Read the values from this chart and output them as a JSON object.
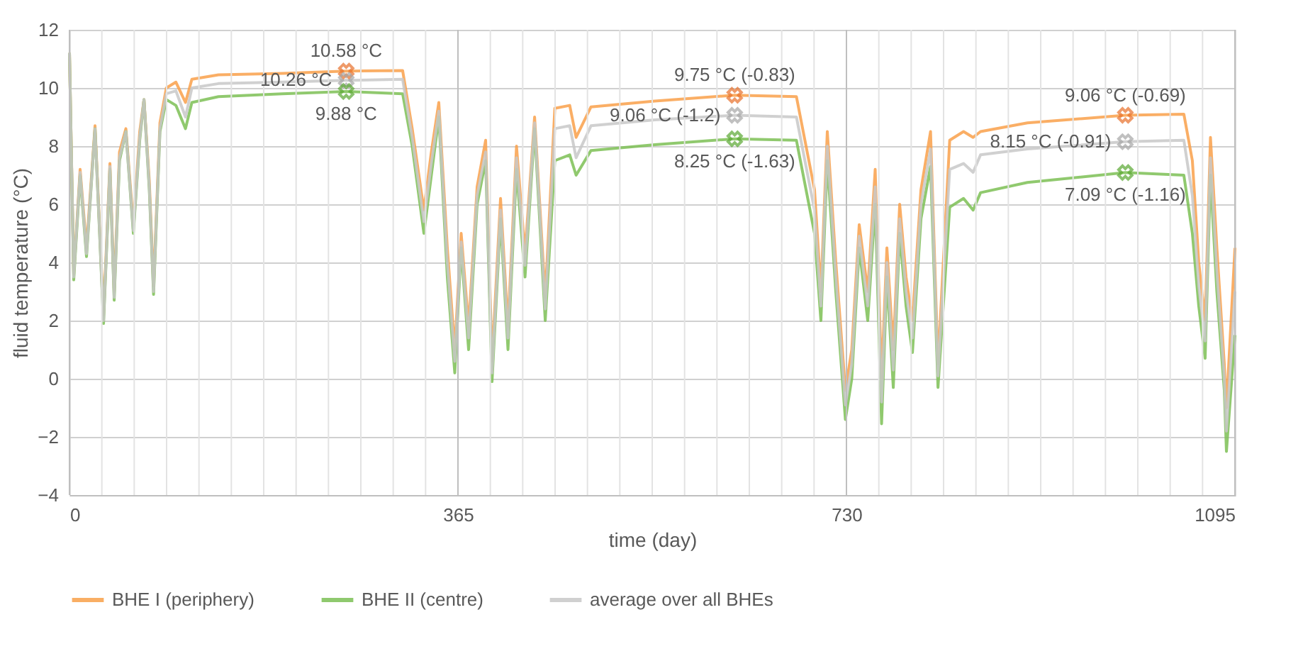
{
  "chart_data": {
    "type": "line",
    "xlabel": "time (day)",
    "ylabel": "fluid temperature (°C)",
    "x": [
      0,
      4,
      10,
      16,
      24,
      32,
      38,
      42,
      47,
      53,
      60,
      66,
      70,
      75,
      79,
      85,
      91,
      100,
      109,
      115,
      140,
      200,
      260,
      313,
      322,
      333,
      340,
      347,
      355,
      362,
      368,
      375,
      383,
      391,
      397,
      405,
      412,
      420,
      428,
      437,
      447,
      456,
      470,
      476,
      490,
      550,
      625,
      683,
      700,
      706,
      712,
      720,
      729,
      735,
      742,
      750,
      757,
      763,
      768,
      774,
      780,
      786,
      792,
      800,
      809,
      816,
      827,
      840,
      849,
      856,
      900,
      992,
      1047,
      1055,
      1061,
      1067,
      1072,
      1078,
      1085,
      1087,
      1095
    ],
    "series": [
      {
        "name": "BHE I (periphery)",
        "color": "#f9a04a",
        "values": [
          11.2,
          3.6,
          7.2,
          4.5,
          8.7,
          2.2,
          7.4,
          3.0,
          7.8,
          8.6,
          5.3,
          8.5,
          9.6,
          6.8,
          3.2,
          8.8,
          10.0,
          10.2,
          9.5,
          10.3,
          10.45,
          10.5,
          10.58,
          10.6,
          8.6,
          5.8,
          7.8,
          9.5,
          4.5,
          1.0,
          5.0,
          1.8,
          6.6,
          8.2,
          0.6,
          6.2,
          1.8,
          8.0,
          4.3,
          9.0,
          2.8,
          9.3,
          9.4,
          8.3,
          9.35,
          9.55,
          9.75,
          9.7,
          6.5,
          3.0,
          8.5,
          4.0,
          -0.4,
          1.0,
          5.3,
          3.0,
          7.2,
          0.0,
          4.5,
          1.0,
          6.0,
          3.5,
          2.0,
          6.5,
          8.5,
          0.5,
          8.2,
          8.5,
          8.3,
          8.5,
          8.8,
          9.06,
          9.1,
          7.5,
          4.0,
          2.0,
          8.3,
          4.5,
          0.5,
          -1.0,
          4.5
        ]
      },
      {
        "name": "BHE II (centre)",
        "color": "#7cc055",
        "values": [
          11.2,
          3.4,
          7.0,
          4.2,
          8.6,
          1.9,
          7.2,
          2.7,
          7.5,
          8.5,
          5.0,
          8.2,
          9.6,
          6.5,
          2.9,
          8.5,
          9.6,
          9.4,
          8.6,
          9.5,
          9.7,
          9.8,
          9.88,
          9.8,
          8.0,
          5.0,
          7.0,
          9.0,
          3.5,
          0.2,
          4.5,
          1.0,
          6.0,
          7.5,
          -0.1,
          5.5,
          1.0,
          7.2,
          3.5,
          8.6,
          2.0,
          7.5,
          7.7,
          7.0,
          7.85,
          8.05,
          8.25,
          8.2,
          5.0,
          2.0,
          7.5,
          3.0,
          -1.4,
          0.0,
          4.5,
          2.0,
          6.0,
          -1.55,
          3.5,
          -0.3,
          5.0,
          2.5,
          0.9,
          5.5,
          7.3,
          -0.3,
          5.9,
          6.2,
          5.8,
          6.4,
          6.75,
          7.09,
          7.0,
          5.0,
          2.5,
          0.7,
          7.0,
          3.0,
          -0.4,
          -2.5,
          1.5
        ]
      },
      {
        "name": "average over all BHEs",
        "color": "#c8c8c8",
        "values": [
          11.2,
          3.5,
          7.1,
          4.3,
          8.6,
          2.0,
          7.3,
          2.8,
          7.6,
          8.5,
          5.1,
          8.3,
          9.6,
          6.6,
          3.0,
          8.6,
          9.8,
          9.9,
          9.0,
          10.0,
          10.15,
          10.2,
          10.26,
          10.3,
          8.3,
          5.4,
          7.4,
          9.2,
          4.0,
          0.6,
          4.7,
          1.4,
          6.3,
          7.8,
          0.2,
          5.8,
          1.4,
          7.6,
          3.9,
          8.8,
          2.4,
          8.6,
          8.7,
          7.6,
          8.7,
          8.9,
          9.06,
          9.0,
          5.8,
          2.5,
          8.0,
          3.5,
          -0.9,
          0.5,
          4.9,
          2.5,
          6.6,
          -0.8,
          4.0,
          0.3,
          5.5,
          3.0,
          1.4,
          6.0,
          7.9,
          0.1,
          7.2,
          7.4,
          7.1,
          7.7,
          7.9,
          8.15,
          8.2,
          6.3,
          3.2,
          1.3,
          7.6,
          3.7,
          0.0,
          -1.8,
          3.0
        ]
      },
      {
        "type": "scatter",
        "marker": "cross",
        "color": "#e8702a",
        "x": [
          260,
          625,
          992
        ],
        "values": [
          10.58,
          9.75,
          9.06
        ]
      },
      {
        "type": "scatter",
        "marker": "cross",
        "color": "#a6a6a6",
        "x": [
          260,
          625,
          992
        ],
        "values": [
          10.26,
          9.06,
          8.15
        ]
      },
      {
        "type": "scatter",
        "marker": "cross",
        "color": "#5aa832",
        "x": [
          260,
          625,
          992
        ],
        "values": [
          9.88,
          8.25,
          7.09
        ]
      }
    ],
    "annotations": [
      {
        "text": "10.58 °C",
        "x": 260,
        "y": 10.58
      },
      {
        "text": "10.26 °C",
        "x": 260,
        "y": 10.26
      },
      {
        "text": "9.88 °C",
        "x": 260,
        "y": 9.88
      },
      {
        "text": "9.75 °C (-0.83)",
        "x": 625,
        "y": 9.75
      },
      {
        "text": "9.06 °C (-1.2)",
        "x": 625,
        "y": 9.06
      },
      {
        "text": "8.25 °C (-1.63)",
        "x": 625,
        "y": 8.25
      },
      {
        "text": "9.06 °C (-0.69)",
        "x": 992,
        "y": 9.06
      },
      {
        "text": "8.15 °C (-0.91)",
        "x": 992,
        "y": 8.15
      },
      {
        "text": "7.09 °C (-1.16)",
        "x": 992,
        "y": 7.09
      }
    ],
    "xlim": [
      0,
      1095
    ],
    "xticks": [
      0,
      {
        "value": 30.42,
        "label": null
      },
      {
        "value": 60.83,
        "label": null
      },
      {
        "value": 91.25,
        "label": null
      },
      {
        "value": 121.67,
        "label": null
      },
      {
        "value": 152.08,
        "label": null
      },
      {
        "value": 182.5,
        "label": null
      },
      {
        "value": 212.92,
        "label": null
      },
      {
        "value": 243.33,
        "label": null
      },
      {
        "value": 273.75,
        "label": null
      },
      {
        "value": 304.17,
        "label": null
      },
      {
        "value": 334.58,
        "label": null
      },
      365,
      {
        "value": 395.42,
        "label": null
      },
      {
        "value": 425.83,
        "label": null
      },
      {
        "value": 456.25,
        "label": null
      },
      {
        "value": 486.67,
        "label": null
      },
      {
        "value": 517.08,
        "label": null
      },
      {
        "value": 547.5,
        "label": null
      },
      {
        "value": 577.92,
        "label": null
      },
      {
        "value": 608.33,
        "label": null
      },
      {
        "value": 638.75,
        "label": null
      },
      {
        "value": 669.17,
        "label": null
      },
      {
        "value": 699.58,
        "label": null
      },
      730,
      {
        "value": 760.42,
        "label": null
      },
      {
        "value": 790.83,
        "label": null
      },
      {
        "value": 821.25,
        "label": null
      },
      {
        "value": 851.67,
        "label": null
      },
      {
        "value": 882.08,
        "label": null
      },
      {
        "value": 912.5,
        "label": null
      },
      {
        "value": 942.92,
        "label": null
      },
      {
        "value": 973.33,
        "label": null
      },
      {
        "value": 1003.75,
        "label": null
      },
      {
        "value": 1034.17,
        "label": null
      },
      {
        "value": 1064.58,
        "label": null
      },
      1095
    ],
    "ylim": [
      -4,
      12
    ],
    "yticks": [
      -4,
      -2,
      0,
      2,
      4,
      6,
      8,
      10,
      12
    ],
    "grid": true,
    "legend": "bottom",
    "line_style": "solid"
  }
}
